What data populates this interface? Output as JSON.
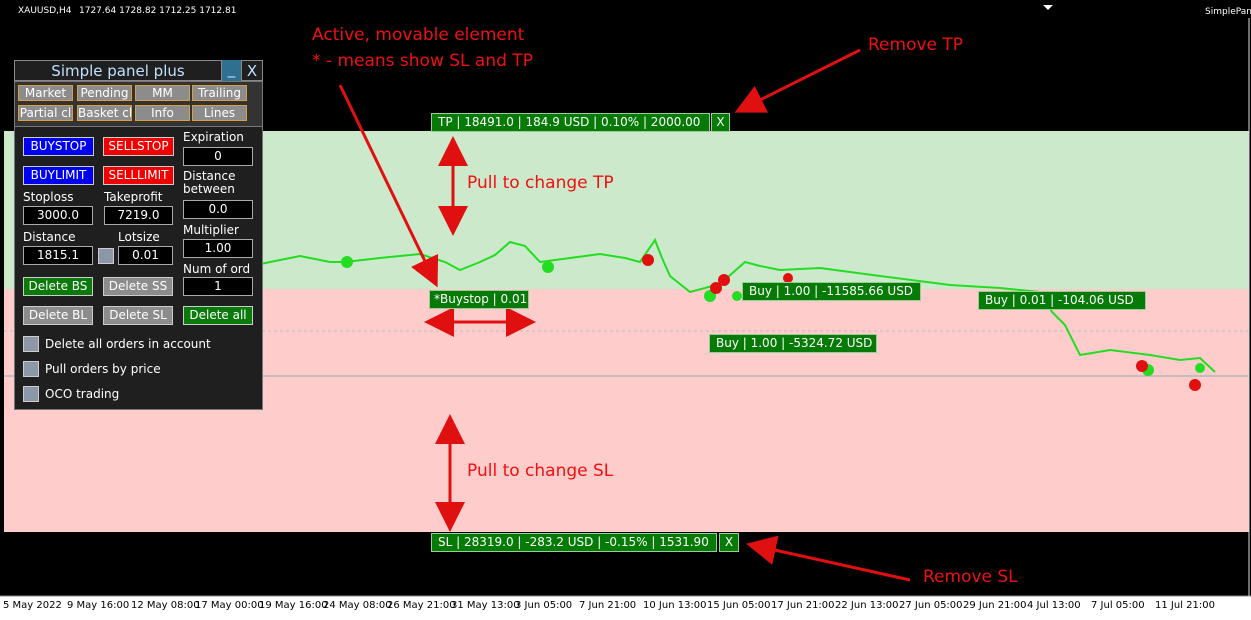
{
  "header": {
    "symbol": "XAUUSD,H4",
    "quote": "1727.64 1728.82 1712.25 1712.81",
    "indicator": "SimplePane"
  },
  "panel": {
    "title": "Simple panel plus",
    "minimize": "_",
    "close": "X",
    "tabs": [
      "Market",
      "Pending",
      "MM",
      "Trailing",
      "Partial cl",
      "Basket cl",
      "Info",
      "Lines"
    ],
    "buttons": {
      "buystop": "BUYSTOP",
      "sellstop": "SELLSTOP",
      "buylimit": "BUYLIMIT",
      "selllimit": "SELLLIMIT",
      "delete_bs": "Delete BS",
      "delete_ss": "Delete SS",
      "delete_bl": "Delete BL",
      "delete_sl": "Delete SL",
      "delete_all": "Delete all"
    },
    "fields": {
      "expiration": {
        "label": "Expiration",
        "value": "0"
      },
      "distance_between": {
        "label": "Distance between",
        "value": "0.0"
      },
      "stoploss": {
        "label": "Stoploss",
        "value": "3000.0"
      },
      "takeprofit": {
        "label": "Takeprofit",
        "value": "7219.0"
      },
      "multiplier": {
        "label": "Multiplier",
        "value": "1.00"
      },
      "distance": {
        "label": "Distance",
        "value": "1815.1"
      },
      "lotsize": {
        "label": "Lotsize",
        "value": "0.01"
      },
      "num_of_ord": {
        "label": "Num of ord",
        "value": "1"
      }
    },
    "checkboxes": [
      "Delete all orders in account",
      "Pull orders by price",
      "OCO trading"
    ]
  },
  "chart": {
    "tp": {
      "label": "TP | 18491.0 | 184.9 USD | 0.10% | 2000.00",
      "close": "X"
    },
    "sl": {
      "label": "SL | 28319.0 | -283.2 USD | -0.15% | 1531.90",
      "close": "X"
    },
    "buystop": "*Buystop | 0.01",
    "positions": [
      "Buy | 1.00 | -11585.66 USD",
      "Buy | 0.01 | -104.06 USD",
      "Buy | 1.00 | -5324.72 USD"
    ],
    "dates": [
      "5 May 2022",
      "9 May 16:00",
      "12 May 08:00",
      "17 May 00:00",
      "19 May 16:00",
      "24 May 08:00",
      "26 May 21:00",
      "31 May 13:00",
      "3 Jun 05:00",
      "7 Jun 21:00",
      "10 Jun 13:00",
      "15 Jun 05:00",
      "17 Jun 21:00",
      "22 Jun 13:00",
      "27 Jun 05:00",
      "29 Jun 21:00",
      "4 Jul 13:00",
      "7 Jul 05:00",
      "11 Jul 21:00"
    ]
  },
  "annotations": {
    "active_1": "Active, movable element",
    "active_2": "* - means show SL and TP",
    "remove_tp": "Remove TP",
    "pull_tp": "Pull to change TP",
    "pull_sl": "Pull to change SL",
    "remove_sl": "Remove SL"
  }
}
